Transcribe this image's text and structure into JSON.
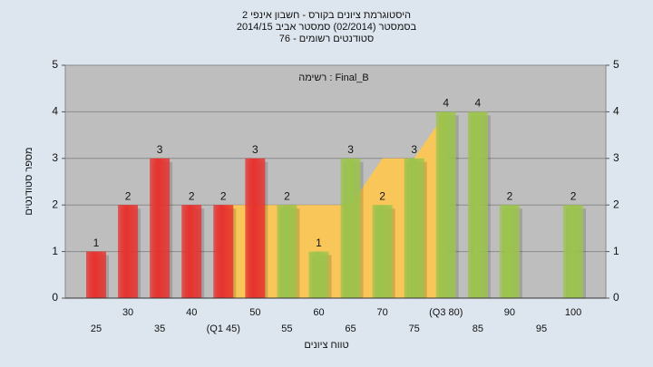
{
  "chart_data": {
    "type": "bar",
    "title": "היסטוגרמת ציונים בקורס - חשבון אינפי 2",
    "subtitle": "בסמסטר  (02/2014)  סמסטר אביב 2014/15",
    "subtitle2": "סטודנטים רשומים - 76",
    "annotation": "רשימה : Final_B",
    "x_label": "טווח ציונים",
    "y_label": "מספר סטודנטים",
    "categories": [
      "25",
      "30",
      "35",
      "40",
      "(Q1 45)",
      "50",
      "55",
      "60",
      "65",
      "70",
      "75",
      "(Q3 80)",
      "85",
      "90",
      "95",
      "100"
    ],
    "values": [
      1,
      2,
      3,
      2,
      2,
      3,
      2,
      1,
      3,
      2,
      3,
      4,
      4,
      2,
      0,
      2
    ],
    "colors": [
      "#e8322e",
      "#e8322e",
      "#e8322e",
      "#e8322e",
      "#e8322e",
      "#e8322e",
      "#9cc44c",
      "#9cc44c",
      "#9cc44c",
      "#9cc44c",
      "#9cc44c",
      "#9cc44c",
      "#9cc44c",
      "#9cc44c",
      "#9cc44c",
      "#9cc44c"
    ],
    "area": {
      "color": "#f9c65a",
      "values": [
        null,
        null,
        null,
        null,
        2,
        2,
        2,
        2,
        2,
        3,
        3,
        4,
        null,
        null,
        null,
        null
      ]
    },
    "ylim": [
      0,
      5
    ],
    "yticks": [
      0,
      1,
      2,
      3,
      4,
      5
    ],
    "grid": true
  }
}
